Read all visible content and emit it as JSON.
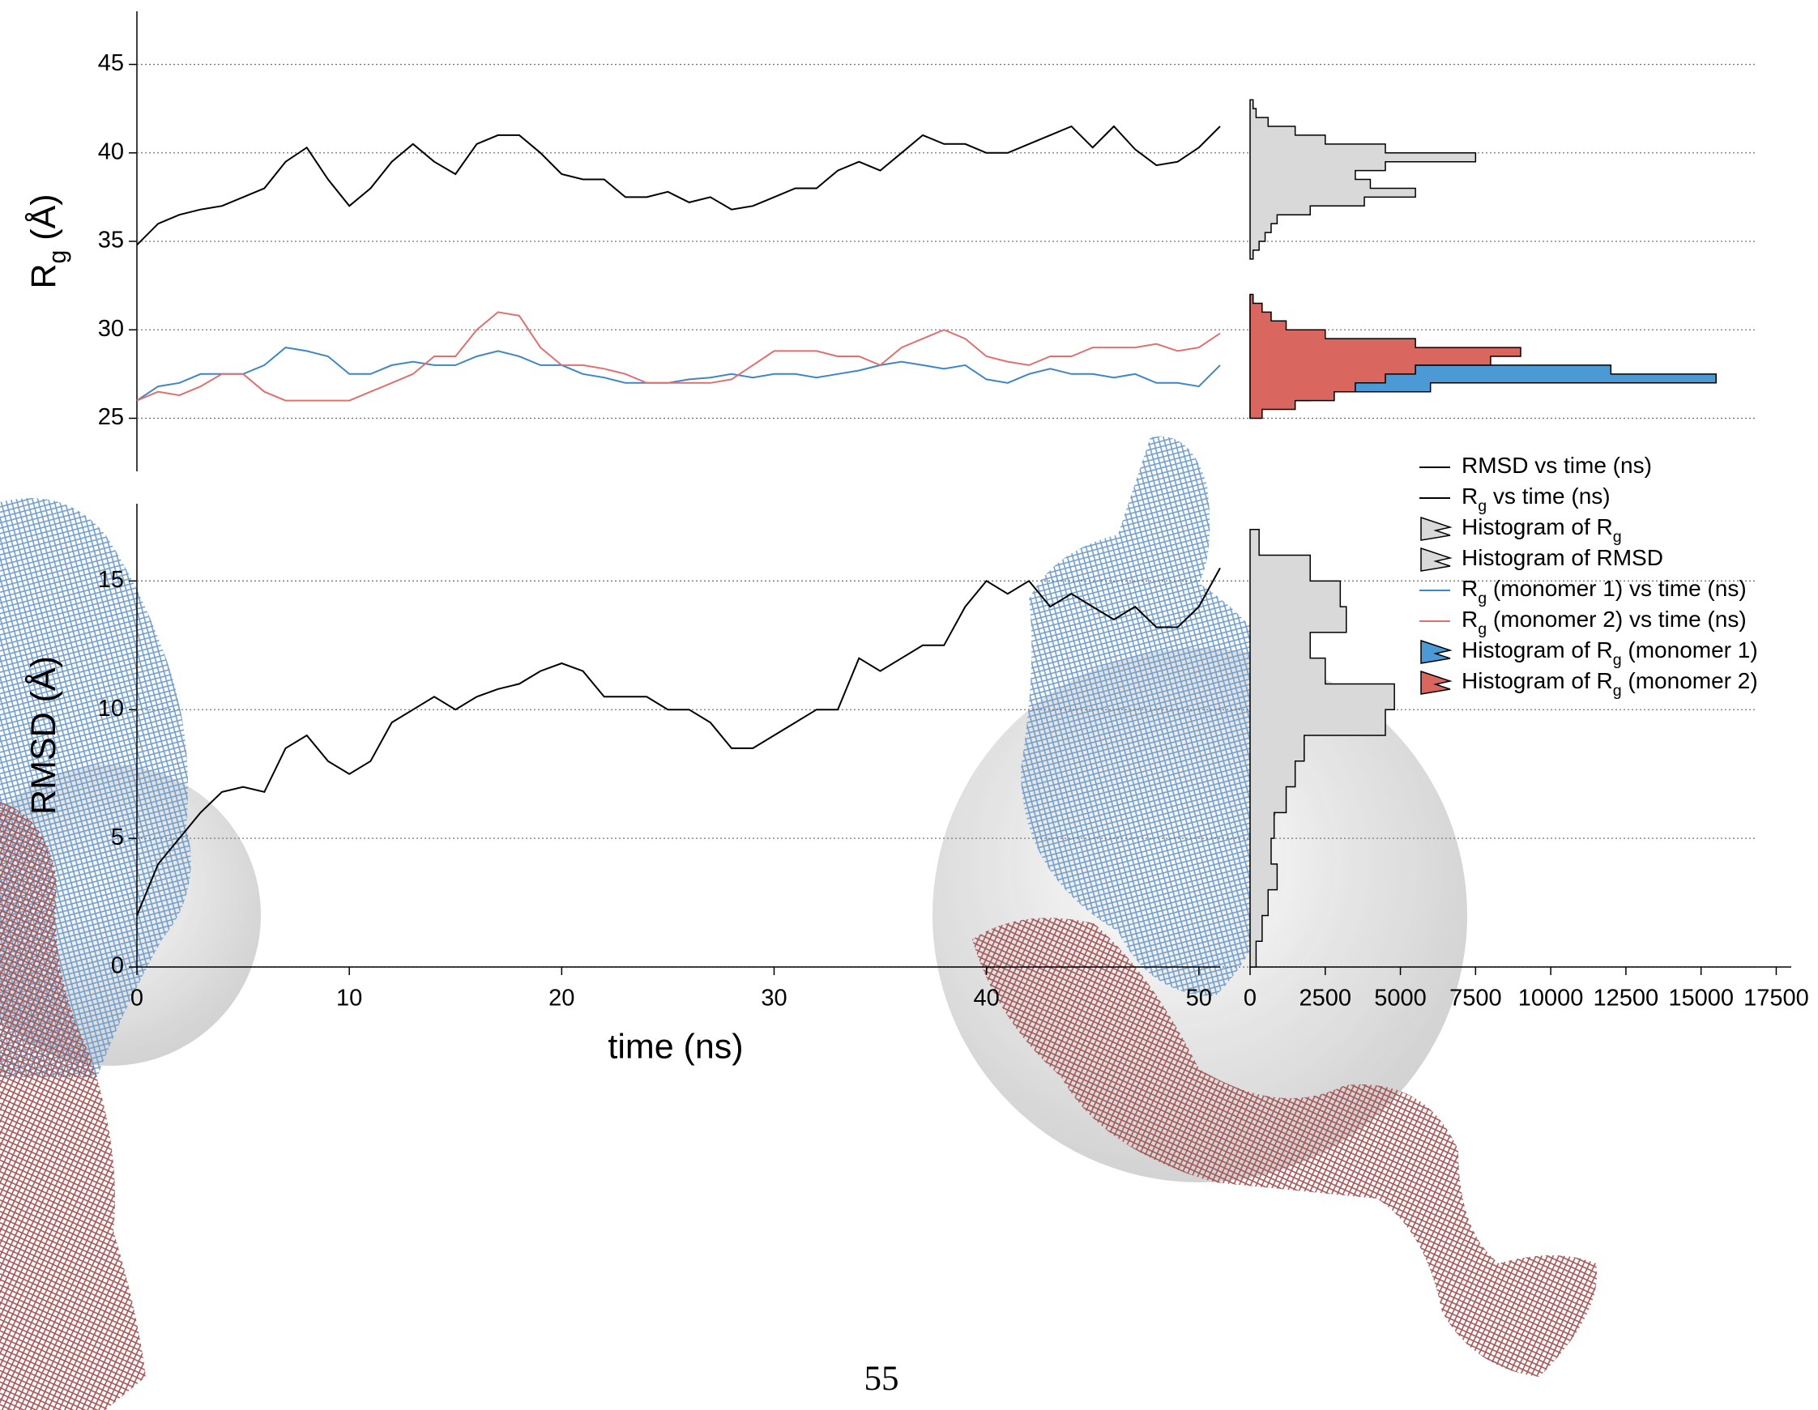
{
  "chart_data": [
    {
      "type": "line",
      "ylabel": [
        "R",
        "g",
        " (Å)"
      ],
      "x": [
        0,
        1,
        2,
        3,
        4,
        5,
        6,
        7,
        8,
        9,
        10,
        11,
        12,
        13,
        14,
        15,
        16,
        17,
        18,
        19,
        20,
        21,
        22,
        23,
        24,
        25,
        26,
        27,
        28,
        29,
        30,
        31,
        32,
        33,
        34,
        35,
        36,
        37,
        38,
        39,
        40,
        41,
        42,
        43,
        44,
        45,
        46,
        47,
        48,
        49,
        50,
        51
      ],
      "xlim": [
        0,
        51
      ],
      "ylim": [
        22,
        48
      ],
      "yticks": [
        25,
        30,
        35,
        40,
        45
      ],
      "grid": true,
      "series": [
        {
          "name": [
            "R",
            "g",
            " vs time (ns)"
          ],
          "color": "#000000",
          "values": [
            34.8,
            36,
            36.5,
            36.8,
            37,
            37.5,
            38,
            39.5,
            40.3,
            38.5,
            37,
            38,
            39.5,
            40.5,
            39.5,
            38.8,
            40.5,
            41,
            41,
            40,
            38.8,
            38.5,
            38.5,
            37.5,
            37.5,
            37.8,
            37.2,
            37.5,
            36.8,
            37,
            37.5,
            38,
            38,
            39,
            39.5,
            39,
            40,
            41,
            40.5,
            40.5,
            40,
            40,
            40.5,
            41,
            41.5,
            40.3,
            41.5,
            40.2,
            39.3,
            39.5,
            40.3,
            41.5
          ]
        },
        {
          "name": [
            "R",
            "g",
            " (monomer 1) vs time (ns)"
          ],
          "color": "#3f86c6",
          "values": [
            26,
            26.8,
            27,
            27.5,
            27.5,
            27.5,
            28,
            29,
            28.8,
            28.5,
            27.5,
            27.5,
            28,
            28.2,
            28,
            28,
            28.5,
            28.8,
            28.5,
            28,
            28,
            27.5,
            27.3,
            27,
            27,
            27,
            27.2,
            27.3,
            27.5,
            27.3,
            27.5,
            27.5,
            27.3,
            27.5,
            27.7,
            28,
            28.2,
            28,
            27.8,
            28,
            27.2,
            27,
            27.5,
            27.8,
            27.5,
            27.5,
            27.3,
            27.5,
            27,
            27,
            26.8,
            28
          ]
        },
        {
          "name": [
            "R",
            "g",
            " (monomer 2) vs time (ns)"
          ],
          "color": "#e07070",
          "values": [
            26,
            26.5,
            26.3,
            26.8,
            27.5,
            27.5,
            26.5,
            26,
            26,
            26,
            26,
            26.5,
            27,
            27.5,
            28.5,
            28.5,
            30,
            31,
            30.8,
            29,
            28,
            28,
            27.8,
            27.5,
            27,
            27,
            27,
            27,
            27.2,
            28,
            28.8,
            28.8,
            28.8,
            28.5,
            28.5,
            28,
            29,
            29.5,
            30,
            29.5,
            28.5,
            28.2,
            28,
            28.5,
            28.5,
            29,
            29,
            29,
            29.2,
            28.8,
            29,
            29.8
          ]
        }
      ]
    },
    {
      "type": "line",
      "ylabel": [
        "RMSD (Å)"
      ],
      "xlabel": "time (ns)",
      "x": [
        0,
        1,
        2,
        3,
        4,
        5,
        6,
        7,
        8,
        9,
        10,
        11,
        12,
        13,
        14,
        15,
        16,
        17,
        18,
        19,
        20,
        21,
        22,
        23,
        24,
        25,
        26,
        27,
        28,
        29,
        30,
        31,
        32,
        33,
        34,
        35,
        36,
        37,
        38,
        39,
        40,
        41,
        42,
        43,
        44,
        45,
        46,
        47,
        48,
        49,
        50,
        51
      ],
      "xlim": [
        0,
        51
      ],
      "xticks": [
        0,
        10,
        20,
        30,
        40,
        50
      ],
      "ylim": [
        0,
        18
      ],
      "yticks": [
        0,
        5,
        10,
        15
      ],
      "grid": true,
      "series": [
        {
          "name": [
            "RMSD vs time (ns)"
          ],
          "color": "#000000",
          "values": [
            2,
            4,
            5,
            6,
            6.8,
            7,
            6.8,
            8.5,
            9,
            8,
            7.5,
            8,
            9.5,
            10,
            10.5,
            10,
            10.5,
            10.8,
            11,
            11.5,
            11.8,
            11.5,
            10.5,
            10.5,
            10.5,
            10,
            10,
            9.5,
            8.5,
            8.5,
            9,
            9.5,
            10,
            10,
            12,
            11.5,
            12,
            12.5,
            12.5,
            14,
            15,
            14.5,
            15,
            14,
            14.5,
            14,
            13.5,
            14,
            13.2,
            13.2,
            14,
            15.5
          ]
        }
      ]
    },
    {
      "type": "histogram",
      "xlim": [
        0,
        18000
      ],
      "ylim": [
        22,
        48
      ],
      "series": [
        {
          "name": [
            "Histogram of R",
            "g",
            ""
          ],
          "color": "#d9d9d9",
          "bins": [
            34,
            34.5,
            35,
            35.5,
            36,
            36.5,
            37,
            37.5,
            38,
            38.5,
            39,
            39.5,
            40,
            40.5,
            41,
            41.5,
            42,
            42.5,
            43
          ],
          "values": [
            100,
            300,
            500,
            700,
            900,
            2000,
            3800,
            5500,
            4000,
            3500,
            4500,
            7500,
            4500,
            2500,
            1500,
            600,
            200,
            100
          ]
        },
        {
          "name": [
            "Histogram of R",
            "g",
            " (monomer 1)"
          ],
          "color": "#4b9ad6",
          "bins": [
            25,
            25.5,
            26,
            26.5,
            27,
            27.5,
            28,
            28.5,
            29,
            29.5,
            30,
            30.5,
            31,
            31.5,
            32
          ],
          "values": [
            0,
            100,
            2000,
            6000,
            15500,
            12000,
            4000,
            1500,
            300,
            0,
            0,
            0,
            0,
            0
          ]
        },
        {
          "name": [
            "Histogram of R",
            "g",
            " (monomer 2)"
          ],
          "color": "#d9665f",
          "bins": [
            25,
            25.5,
            26,
            26.5,
            27,
            27.5,
            28,
            28.5,
            29,
            29.5,
            30,
            30.5,
            31,
            31.5,
            32
          ],
          "values": [
            400,
            1500,
            2800,
            3500,
            4500,
            5500,
            8000,
            9000,
            5500,
            2500,
            1200,
            700,
            400,
            100
          ]
        }
      ]
    },
    {
      "type": "histogram",
      "xlim": [
        0,
        18000
      ],
      "xticks": [
        0,
        2500,
        5000,
        7500,
        10000,
        12500,
        15000,
        17500
      ],
      "ylim": [
        0,
        18
      ],
      "series": [
        {
          "name": [
            "Histogram of RMSD"
          ],
          "color": "#d9d9d9",
          "bins": [
            0,
            1,
            2,
            3,
            4,
            5,
            6,
            7,
            8,
            9,
            10,
            11,
            12,
            13,
            14,
            15,
            16,
            17
          ],
          "values": [
            200,
            400,
            600,
            900,
            700,
            800,
            1200,
            1500,
            1800,
            4500,
            4800,
            2500,
            2000,
            3200,
            3000,
            2000,
            300
          ]
        }
      ]
    }
  ],
  "page_number": "55"
}
